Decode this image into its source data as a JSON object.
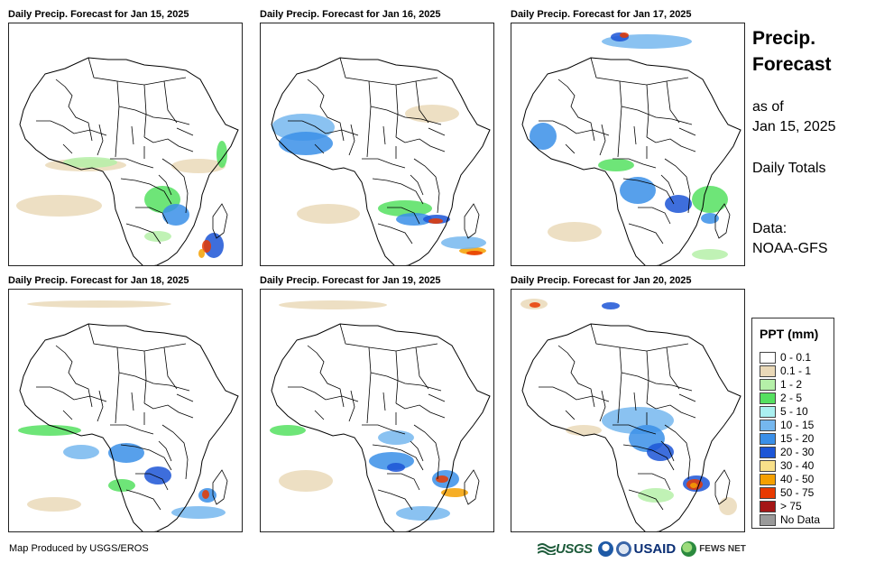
{
  "panels": [
    {
      "title": "Daily Precip. Forecast for Jan 15, 2025"
    },
    {
      "title": "Daily Precip. Forecast for Jan 16, 2025"
    },
    {
      "title": "Daily Precip. Forecast for Jan 17, 2025"
    },
    {
      "title": "Daily Precip. Forecast for Jan 18, 2025"
    },
    {
      "title": "Daily Precip. Forecast for Jan 19, 2025"
    },
    {
      "title": "Daily Precip. Forecast for Jan 20, 2025"
    }
  ],
  "side": {
    "title_line1": "Precip.",
    "title_line2": "Forecast",
    "asof_line1": "as of",
    "asof_line2": "Jan 15, 2025",
    "totals": "Daily Totals",
    "data_line1": "Data:",
    "data_line2": "NOAA-GFS"
  },
  "legend": {
    "title": "PPT (mm)",
    "items": [
      {
        "label": "0 - 0.1",
        "color": "#ffffff"
      },
      {
        "label": "0.1 - 1",
        "color": "#ead9b8"
      },
      {
        "label": "1 - 2",
        "color": "#b5f0a8"
      },
      {
        "label": "2 - 5",
        "color": "#55e060"
      },
      {
        "label": "5 - 10",
        "color": "#aaf0f0"
      },
      {
        "label": "10 - 15",
        "color": "#75b7ee"
      },
      {
        "label": "15 - 20",
        "color": "#3a8fe8"
      },
      {
        "label": "20 - 30",
        "color": "#1c55d6"
      },
      {
        "label": "30 - 40",
        "color": "#f8e08a"
      },
      {
        "label": "40 - 50",
        "color": "#f5a000"
      },
      {
        "label": "50 - 75",
        "color": "#e83a00"
      },
      {
        "label": "> 75",
        "color": "#a51616"
      },
      {
        "label": "No Data",
        "color": "#9a9a9a"
      }
    ]
  },
  "footer": {
    "credit": "Map Produced by USGS/EROS",
    "logos": {
      "usgs": "USGS",
      "usaid": "USAID",
      "fews": "FEWS NET"
    }
  }
}
